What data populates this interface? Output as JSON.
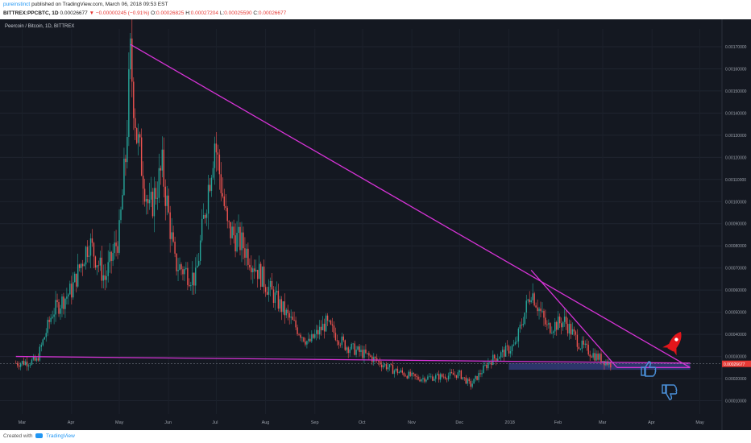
{
  "header": {
    "publisher": "pureinstinct",
    "published_text": "published on TradingView.com, March 06, 2018 09:53 EST",
    "symbol": "BITTREX:PPCBTC, 1D",
    "last_price": "0.00026677",
    "change": "−0.00000245 (−0.91%)",
    "open_label": "O:",
    "open": "0.00026825",
    "high_label": "H:",
    "high": "0.00027204",
    "low_label": "L:",
    "low": "0.00025590",
    "close_label": "C:",
    "close": "0.00026677"
  },
  "footer": {
    "created_with": "Created with",
    "brand": "TradingView"
  },
  "colors": {
    "bg": "#141821",
    "bull": "#26a69a",
    "bear": "#ef5350",
    "trend": "#d633d6",
    "price_tag": "#e53935",
    "zone": "#3f4fa8",
    "icon_blue": "#4a90d9",
    "rocket": "#e3161b"
  },
  "icons": [
    "thumbs-up-icon",
    "thumbs-down-icon",
    "rocket-icon",
    "tradingview-logo-icon"
  ],
  "chart_data": {
    "type": "candlestick",
    "title": "Peercoin / Bitcoin, 1D, BITTREX",
    "x_ticks": [
      "Mar",
      "Apr",
      "May",
      "Jun",
      "Jul",
      "Aug",
      "Sep",
      "Oct",
      "Nov",
      "Dec",
      "2018",
      "Feb",
      "Mar",
      "Apr",
      "May"
    ],
    "y_ticks": [
      "0.00170000",
      "0.00160000",
      "0.00150000",
      "0.00140000",
      "0.00130000",
      "0.00120000",
      "0.00110000",
      "0.00100000",
      "0.00090000",
      "0.00080000",
      "0.00070000",
      "0.00060000",
      "0.00050000",
      "0.00040000",
      "0.00030000",
      "0.00020000",
      "0.00010000"
    ],
    "ylim": [
      4e-05,
      0.00178
    ],
    "price_path": [
      [
        "2017-02-25",
        0.00027
      ],
      [
        "2017-03-10",
        0.00028
      ],
      [
        "2017-03-20",
        0.0005
      ],
      [
        "2017-04-01",
        0.0006
      ],
      [
        "2017-04-12",
        0.00082
      ],
      [
        "2017-04-22",
        0.00065
      ],
      [
        "2017-05-01",
        0.00085
      ],
      [
        "2017-05-05",
        0.0012
      ],
      [
        "2017-05-08",
        0.00165
      ],
      [
        "2017-05-12",
        0.0013
      ],
      [
        "2017-05-20",
        0.00095
      ],
      [
        "2017-05-28",
        0.00115
      ],
      [
        "2017-06-05",
        0.00072
      ],
      [
        "2017-06-18",
        0.00065
      ],
      [
        "2017-06-30",
        0.00128
      ],
      [
        "2017-07-08",
        0.00088
      ],
      [
        "2017-07-18",
        0.0008
      ],
      [
        "2017-08-01",
        0.00063
      ],
      [
        "2017-08-15",
        0.00048
      ],
      [
        "2017-08-28",
        0.00036
      ],
      [
        "2017-09-08",
        0.00045
      ],
      [
        "2017-09-20",
        0.00035
      ],
      [
        "2017-10-05",
        0.0003
      ],
      [
        "2017-10-20",
        0.00024
      ],
      [
        "2017-11-05",
        0.0002
      ],
      [
        "2017-11-20",
        0.00021
      ],
      [
        "2017-12-01",
        0.00022
      ],
      [
        "2017-12-08",
        0.00017
      ],
      [
        "2017-12-20",
        0.00028
      ],
      [
        "2018-01-05",
        0.00035
      ],
      [
        "2018-01-15",
        0.0006
      ],
      [
        "2018-01-25",
        0.00043
      ],
      [
        "2018-02-05",
        0.00046
      ],
      [
        "2018-02-15",
        0.00035
      ],
      [
        "2018-02-25",
        0.0003
      ],
      [
        "2018-03-06",
        0.00026677
      ]
    ],
    "last_price": 0.00026677,
    "trendlines": [
      {
        "from": [
          "2017-05-08",
          0.00171
        ],
        "to": [
          "2018-04-25",
          0.00025
        ]
      },
      {
        "from": [
          "2018-01-15",
          0.00069
        ],
        "to": [
          "2018-03-10",
          0.00025
        ]
      },
      {
        "from": [
          "2017-02-25",
          0.0003
        ],
        "to": [
          "2018-04-25",
          0.00027
        ]
      },
      {
        "from": [
          "2018-03-10",
          0.00025
        ],
        "to": [
          "2018-04-25",
          0.00025
        ]
      }
    ],
    "support_zone": {
      "x0": "2018-01-01",
      "x1": "2018-04-25",
      "y0": 0.00024,
      "y1": 0.00027
    }
  }
}
